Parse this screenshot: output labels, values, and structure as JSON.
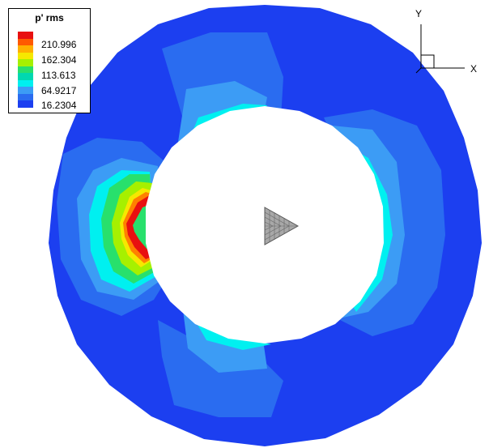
{
  "legend": {
    "title": "p' rms",
    "levels": [
      "210.996",
      "162.304",
      "113.613",
      "64.9217",
      "16.2304"
    ]
  },
  "axes_triad": {
    "x_label": "X",
    "y_label": "Y"
  },
  "colors": {
    "background": "#ffffff",
    "deep_blue": "#1c3ff0",
    "mid_blue": "#2a6cf0",
    "light_blue": "#3c9cf5",
    "cyan": "#00f0f0",
    "green": "#28e06c",
    "yellow_green": "#a6f000",
    "yellow": "#f6e800",
    "orange": "#ff8000",
    "red": "#e81010",
    "mesh_gray": "#8a8a8a"
  },
  "swatch_colors": [
    "#e81010",
    "#ff5a00",
    "#ffb000",
    "#f6e800",
    "#a6f000",
    "#28e06c",
    "#00d8b0",
    "#00f0f0",
    "#3c9cf5",
    "#2a6cf0",
    "#1c3ff0"
  ]
}
